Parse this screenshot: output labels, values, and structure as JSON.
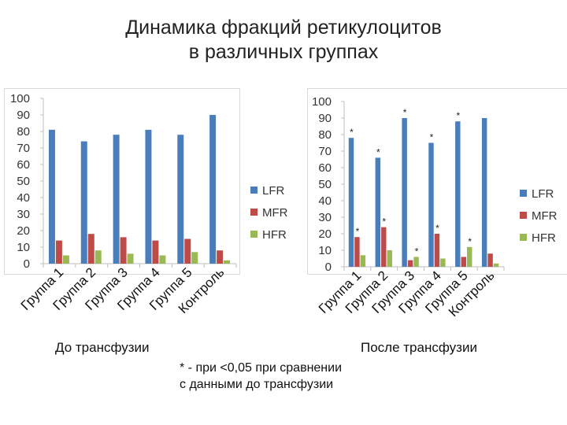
{
  "title_line1": "Динамика фракций ретикулоцитов",
  "title_line2": "в различных группах",
  "caption_before": "До трансфузии",
  "caption_after": "После трансфузии",
  "footnote_line1": "* - при <0,05 при сравнении",
  "footnote_line2": "с данными до трансфузии",
  "colors": {
    "LFR": "#4a7ebb",
    "MFR": "#be4b48",
    "HFR": "#98b954"
  },
  "chart_data": [
    {
      "type": "bar",
      "categories": [
        "Группа 1",
        "Группа 2",
        "Группа 3",
        "Группа 4",
        "Группа 5",
        "Контроль"
      ],
      "ylim": [
        0,
        100
      ],
      "yticks": [
        0,
        10,
        20,
        30,
        40,
        50,
        60,
        70,
        80,
        90,
        100
      ],
      "legend": "right",
      "series": [
        {
          "name": "LFR",
          "values": [
            81,
            74,
            78,
            81,
            78,
            90
          ]
        },
        {
          "name": "MFR",
          "values": [
            14,
            18,
            16,
            14,
            15,
            8
          ]
        },
        {
          "name": "HFR",
          "values": [
            5,
            8,
            6,
            5,
            7,
            2
          ]
        }
      ]
    },
    {
      "type": "bar",
      "categories": [
        "Группа 1",
        "Группа 2",
        "Группа 3",
        "Группа 4",
        "Группа 5",
        "Контроль"
      ],
      "ylim": [
        0,
        100
      ],
      "yticks": [
        0,
        10,
        20,
        30,
        40,
        50,
        60,
        70,
        80,
        90,
        100
      ],
      "legend": "right",
      "series": [
        {
          "name": "LFR",
          "values": [
            78,
            66,
            90,
            75,
            88,
            90
          ],
          "marks": [
            "*",
            "*",
            "*",
            "*",
            "*",
            ""
          ]
        },
        {
          "name": "MFR",
          "values": [
            18,
            24,
            4,
            20,
            6,
            8
          ],
          "marks": [
            "*",
            "*",
            "",
            "*",
            "",
            ""
          ]
        },
        {
          "name": "HFR",
          "values": [
            7,
            10,
            6,
            5,
            12,
            2
          ],
          "marks": [
            "",
            "",
            "*",
            "",
            "*",
            ""
          ]
        }
      ]
    }
  ]
}
